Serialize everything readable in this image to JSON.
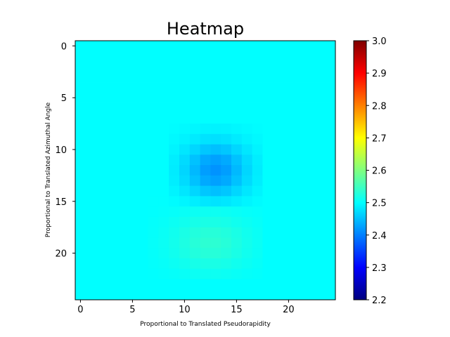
{
  "chart_data": {
    "type": "heatmap",
    "title": "Heatmap",
    "xlabel": "Proportional to Translated Pseudorapidity",
    "ylabel": "Proportional to Translated Azimuthal Angle",
    "rows": 25,
    "cols": 25,
    "background_value": 2.5,
    "x_ticks": [
      0,
      5,
      10,
      15,
      20
    ],
    "y_ticks": [
      0,
      5,
      10,
      15,
      20
    ],
    "colorbar": {
      "min": 2.2,
      "max": 3.0,
      "ticks": [
        2.2,
        2.3,
        2.4,
        2.5,
        2.6,
        2.7,
        2.8,
        2.9,
        3.0
      ],
      "tick_labels": [
        "2.2",
        "2.3",
        "2.4",
        "2.5",
        "2.6",
        "2.7",
        "2.8",
        "2.9",
        "3.0"
      ],
      "colormap": "jet"
    },
    "features": [
      {
        "type": "depression",
        "row_center": 12.0,
        "col_center": 13.0,
        "row_range": [
          8,
          15
        ],
        "col_range": [
          9,
          17
        ],
        "min_value": 2.415
      },
      {
        "type": "bump",
        "row_center": 19.0,
        "col_center": 12.5,
        "row_range": [
          15,
          22
        ],
        "col_range": [
          7,
          17
        ],
        "max_value": 2.535
      }
    ]
  }
}
